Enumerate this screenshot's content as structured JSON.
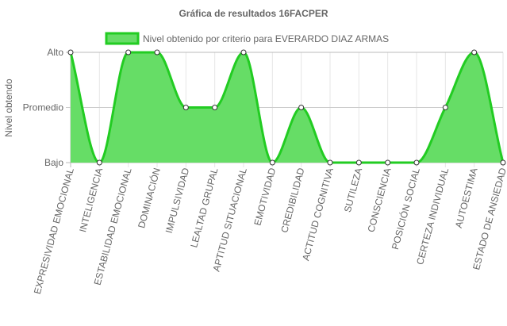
{
  "chart_data": {
    "type": "area",
    "title": "Gráfica de resultados 16FACPER",
    "ylabel": "Nivel obtendo",
    "y_levels": [
      "Bajo",
      "Promedio",
      "Alto"
    ],
    "categories": [
      "EXPRESIVIDAD EMOCIONAL",
      "INTELIGENCIA",
      "ESTABILIDAD EMOCIONAL",
      "DOMINACIÓN",
      "IMPULSIVIDAD",
      "LEALTAD GRUPAL",
      "APTITUD SITUACIONAL",
      "EMOTIVIDAD",
      "CREDIBILIDAD",
      "ACTITUD COGNITIVA",
      "SUTILEZA",
      "CONSCIENCIA",
      "POSICIÓN SOCIAL",
      "CERTEZA INDIVIDUAL",
      "AUTOESTIMA",
      "ESTADO DE ANSIEDAD"
    ],
    "series": [
      {
        "name": "Nivel obtenido por criterio para EVERARDO DIAZ ARMAS",
        "values": [
          "Alto",
          "Bajo",
          "Alto",
          "Alto",
          "Promedio",
          "Promedio",
          "Alto",
          "Bajo",
          "Promedio",
          "Bajo",
          "Bajo",
          "Bajo",
          "Bajo",
          "Promedio",
          "Alto",
          "Bajo"
        ]
      }
    ],
    "colors": {
      "fill": "#66dd66",
      "line": "#22cc22",
      "grid": "#e6e6e6",
      "axis": "#bbbbbb",
      "text": "#666666"
    },
    "legend_position": "top",
    "grid": true
  }
}
